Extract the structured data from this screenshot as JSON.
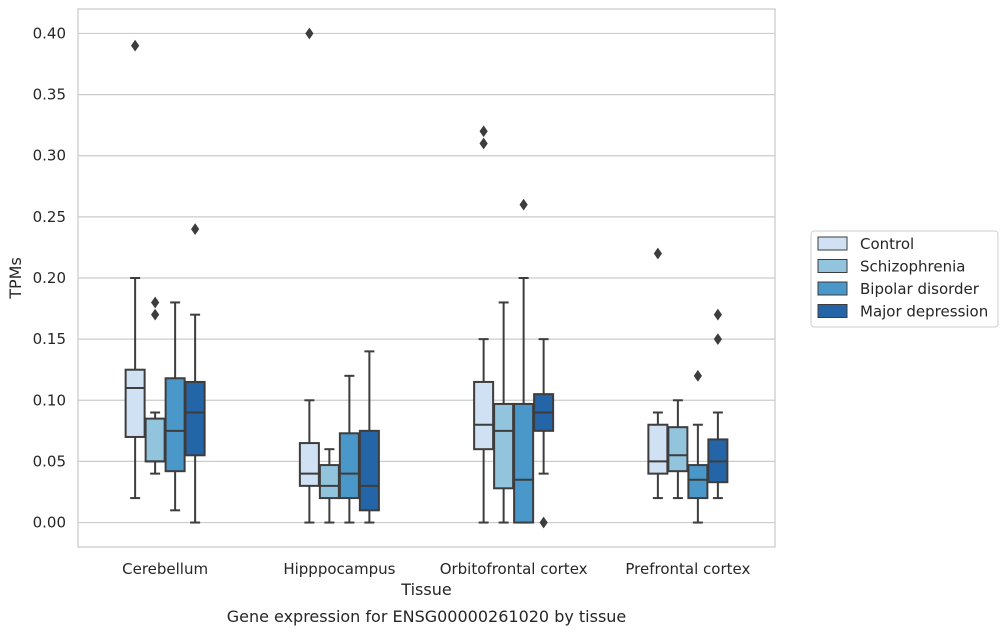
{
  "chart_data": {
    "type": "box",
    "xlabel": "Tissue",
    "ylabel": "TPMs",
    "caption": "Gene expression for ENSG00000261020 by tissue",
    "ylim": [
      -0.02,
      0.42
    ],
    "yticks": [
      "0.00",
      "0.05",
      "0.10",
      "0.15",
      "0.20",
      "0.25",
      "0.30",
      "0.35",
      "0.40"
    ],
    "grid": "horizontal",
    "legend_position": "right",
    "categories": [
      "Cerebellum",
      "Hipppocampus",
      "Orbitofrontal cortex",
      "Prefrontal cortex"
    ],
    "series": [
      {
        "name": "Control",
        "color": "#cfe1f2",
        "boxes": [
          {
            "whisker_low": 0.02,
            "q1": 0.07,
            "median": 0.11,
            "q3": 0.125,
            "whisker_high": 0.2,
            "outliers": [
              0.39
            ]
          },
          {
            "whisker_low": 0.0,
            "q1": 0.03,
            "median": 0.04,
            "q3": 0.065,
            "whisker_high": 0.1,
            "outliers": [
              0.4
            ]
          },
          {
            "whisker_low": 0.0,
            "q1": 0.06,
            "median": 0.08,
            "q3": 0.115,
            "whisker_high": 0.15,
            "outliers": [
              0.31,
              0.32
            ]
          },
          {
            "whisker_low": 0.02,
            "q1": 0.04,
            "median": 0.05,
            "q3": 0.08,
            "whisker_high": 0.09,
            "outliers": [
              0.22
            ]
          }
        ]
      },
      {
        "name": "Schizophrenia",
        "color": "#93c4de",
        "boxes": [
          {
            "whisker_low": 0.04,
            "q1": 0.05,
            "median": 0.05,
            "q3": 0.085,
            "whisker_high": 0.09,
            "outliers": [
              0.17,
              0.18
            ]
          },
          {
            "whisker_low": 0.0,
            "q1": 0.02,
            "median": 0.03,
            "q3": 0.047,
            "whisker_high": 0.06,
            "outliers": []
          },
          {
            "whisker_low": 0.0,
            "q1": 0.028,
            "median": 0.075,
            "q3": 0.097,
            "whisker_high": 0.18,
            "outliers": []
          },
          {
            "whisker_low": 0.02,
            "q1": 0.042,
            "median": 0.055,
            "q3": 0.078,
            "whisker_high": 0.1,
            "outliers": []
          }
        ]
      },
      {
        "name": "Bipolar disorder",
        "color": "#4a98c9",
        "boxes": [
          {
            "whisker_low": 0.01,
            "q1": 0.042,
            "median": 0.075,
            "q3": 0.118,
            "whisker_high": 0.18,
            "outliers": []
          },
          {
            "whisker_low": 0.0,
            "q1": 0.02,
            "median": 0.04,
            "q3": 0.073,
            "whisker_high": 0.12,
            "outliers": []
          },
          {
            "whisker_low": 0.0,
            "q1": 0.0,
            "median": 0.035,
            "q3": 0.097,
            "whisker_high": 0.2,
            "outliers": [
              0.26
            ]
          },
          {
            "whisker_low": 0.0,
            "q1": 0.02,
            "median": 0.035,
            "q3": 0.047,
            "whisker_high": 0.08,
            "outliers": [
              0.12
            ]
          }
        ]
      },
      {
        "name": "Major depression",
        "color": "#2465a8",
        "boxes": [
          {
            "whisker_low": 0.0,
            "q1": 0.055,
            "median": 0.09,
            "q3": 0.115,
            "whisker_high": 0.17,
            "outliers": [
              0.24
            ]
          },
          {
            "whisker_low": 0.0,
            "q1": 0.01,
            "median": 0.03,
            "q3": 0.075,
            "whisker_high": 0.14,
            "outliers": []
          },
          {
            "whisker_low": 0.04,
            "q1": 0.075,
            "median": 0.09,
            "q3": 0.105,
            "whisker_high": 0.15,
            "outliers": [
              0.0
            ]
          },
          {
            "whisker_low": 0.02,
            "q1": 0.033,
            "median": 0.05,
            "q3": 0.068,
            "whisker_high": 0.09,
            "outliers": [
              0.15,
              0.17
            ]
          }
        ]
      }
    ]
  }
}
